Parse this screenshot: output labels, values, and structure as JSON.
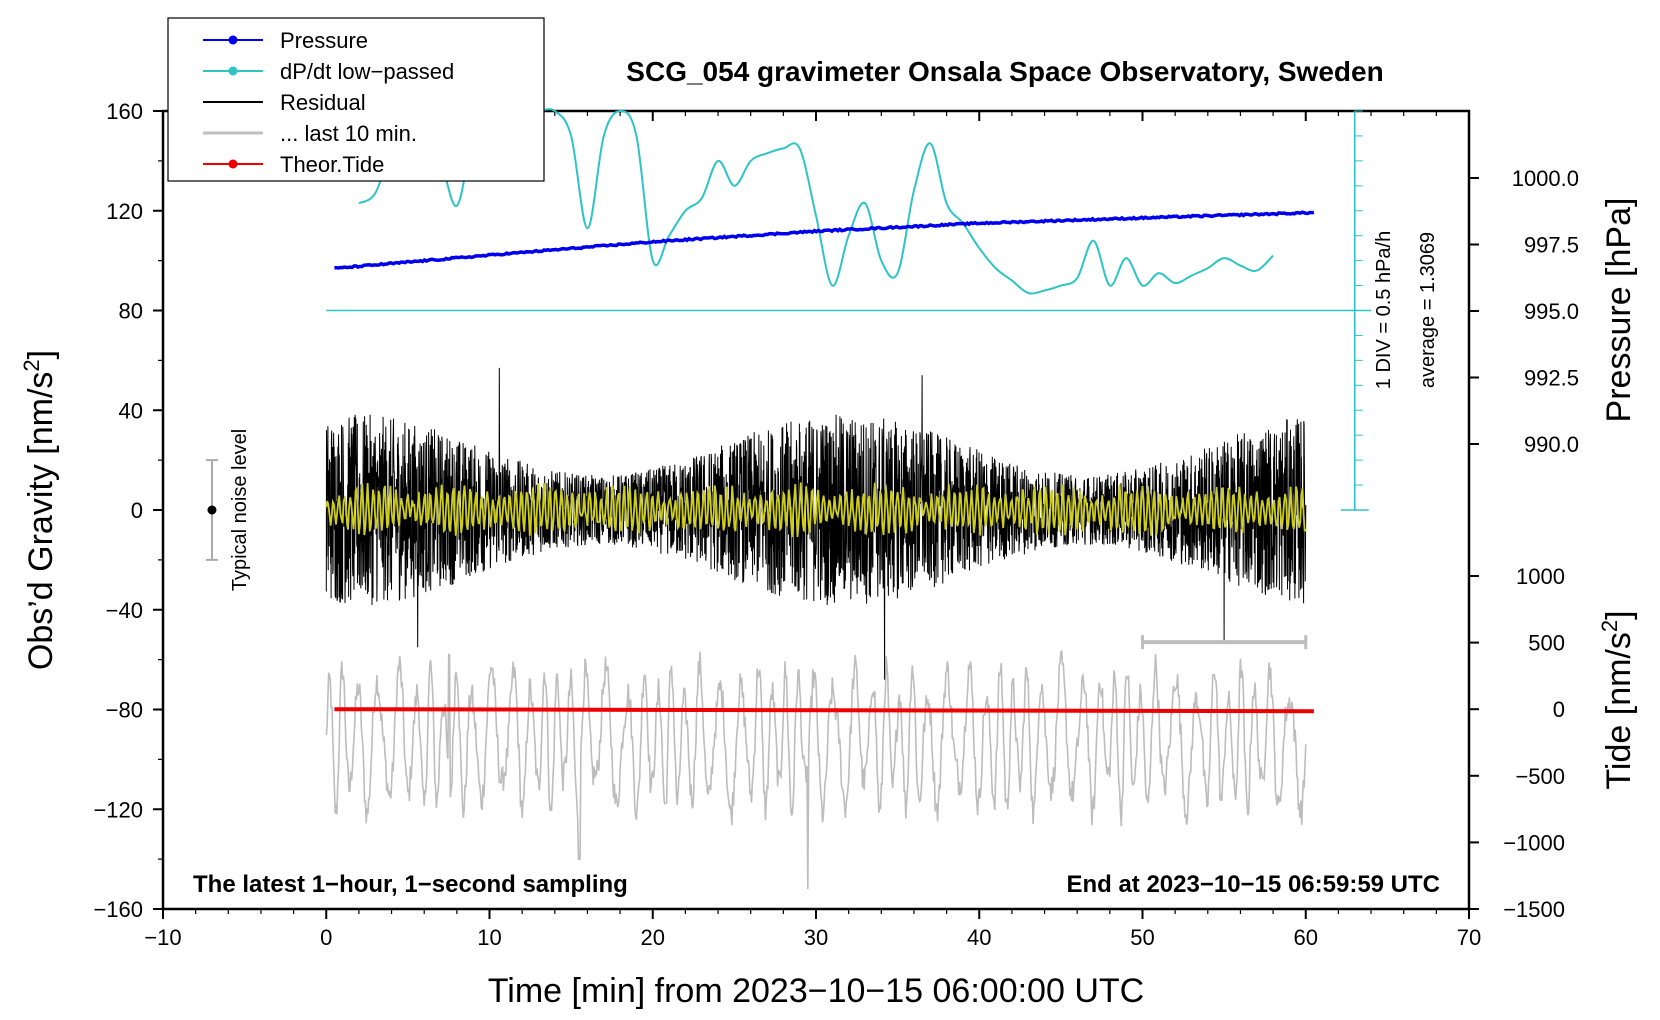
{
  "chart_data": {
    "type": "line",
    "title": "SCG_054 gravimeter Onsala Space Observatory, Sweden",
    "xlabel": "Time [min] from 2023−10−15 06:00:00 UTC",
    "ylabel_left": "Obs’d Gravity [nm/s",
    "ylabel_left_sup": "2",
    "ylabel_left_end": "]",
    "ylabel_right_top": "Pressure [hPa]",
    "ylabel_right_bottom": "Tide [nm/s",
    "ylabel_right_bottom_sup": "2",
    "ylabel_right_bottom_end": "]",
    "xlim": [
      -10,
      70
    ],
    "ylim": [
      -160,
      160
    ],
    "x_ticks": [
      "−10",
      "0",
      "10",
      "20",
      "30",
      "40",
      "50",
      "60",
      "70"
    ],
    "y_ticks": [
      "160",
      "120",
      "80",
      "40",
      "0",
      "−40",
      "−80",
      "−120",
      "−160"
    ],
    "pressure_axis": {
      "ticks": [
        "1000.0",
        "997.5",
        "995.0",
        "992.5",
        "990.0"
      ],
      "tick_values": [
        1000.0,
        997.5,
        995.0,
        992.5,
        990.0
      ]
    },
    "tide_axis": {
      "ticks": [
        "1000",
        "500",
        "0",
        "−500",
        "−1000",
        "−1500"
      ],
      "tick_values": [
        1000,
        500,
        0,
        -500,
        -1000,
        -1500
      ]
    },
    "legend": [
      {
        "label": "Pressure",
        "color": "#0000ee",
        "marker": true
      },
      {
        "label": "dP/dt low−passed",
        "color": "#2ec4c4",
        "marker": true
      },
      {
        "label": "Residual",
        "color": "#000000",
        "marker": false
      },
      {
        "label": "... last 10 min.",
        "color": "#c0c0c0",
        "marker": false
      },
      {
        "label": "Theor.Tide",
        "color": "#ee0000",
        "marker": true
      }
    ],
    "series": [
      {
        "name": "Pressure",
        "unit": "hPa",
        "x": [
          0.5,
          10,
          20,
          30,
          40,
          50,
          60.5
        ],
        "values": [
          996.6,
          997.1,
          997.6,
          998.0,
          998.3,
          998.5,
          998.7
        ]
      },
      {
        "name": "dP/dt low−passed",
        "unit": "gravity-axis units (baseline 80)",
        "x": [
          2,
          3,
          4,
          5,
          6,
          7,
          8,
          9,
          10,
          11,
          12,
          13,
          14,
          15,
          16,
          17,
          18,
          19,
          20,
          21,
          22,
          23,
          24,
          25,
          26,
          27,
          28,
          29,
          30,
          31,
          32,
          33,
          34,
          35,
          36,
          37,
          38,
          39,
          40,
          41,
          42,
          43,
          44,
          45,
          46,
          47,
          48,
          49,
          50,
          51,
          52,
          53,
          54,
          55,
          56,
          57,
          58
        ],
        "values": [
          123,
          127,
          145,
          160,
          150,
          140,
          122,
          150,
          160,
          160,
          160,
          160,
          160,
          150,
          113,
          150,
          160,
          150,
          100,
          110,
          120,
          125,
          140,
          130,
          140,
          143,
          145,
          145,
          118,
          90,
          110,
          123,
          100,
          95,
          128,
          147,
          123,
          115,
          105,
          97,
          92,
          87,
          88,
          90,
          93,
          108,
          90,
          101,
          90,
          95,
          91,
          94,
          97,
          101,
          98,
          96,
          102
        ]
      },
      {
        "name": "Residual",
        "unit": "nm/s²",
        "x_range": [
          0,
          60
        ],
        "envelope": 35,
        "spikes": [
          {
            "x": 10.6,
            "value": 57
          },
          {
            "x": 34.2,
            "value": -68
          },
          {
            "x": 36.5,
            "value": 54
          },
          {
            "x": 5.6,
            "value": -55
          },
          {
            "x": 55.0,
            "value": -53
          }
        ]
      },
      {
        "name": "... last 10 min.",
        "unit": "nm/s²",
        "x_range": [
          0,
          60
        ],
        "center": -92,
        "envelope": 30,
        "extremes": [
          {
            "x": 15.5,
            "value": -140
          },
          {
            "x": 29.5,
            "value": -152
          },
          {
            "x": 7.5,
            "value": -58
          }
        ]
      },
      {
        "name": "Theor.Tide",
        "unit": "nm/s² (tide axis)",
        "x": [
          0.5,
          60.5
        ],
        "values": [
          0,
          -15
        ]
      }
    ],
    "noise_level": {
      "label": "Typical noise level",
      "x": -7,
      "center": 0,
      "half_range": 20
    },
    "dpdt_scale": {
      "label_1": "1 DIV = 0.5 hPa/h",
      "label_2": "average = 1.3069",
      "axis_x": 63,
      "from": 0,
      "to": 160
    },
    "gray_range_bar": {
      "x_from": 50,
      "x_to": 60,
      "y": -53
    },
    "footer_left": "The latest 1−hour, 1−second sampling",
    "footer_right": "End at 2023−10−15 06:59:59 UTC"
  }
}
